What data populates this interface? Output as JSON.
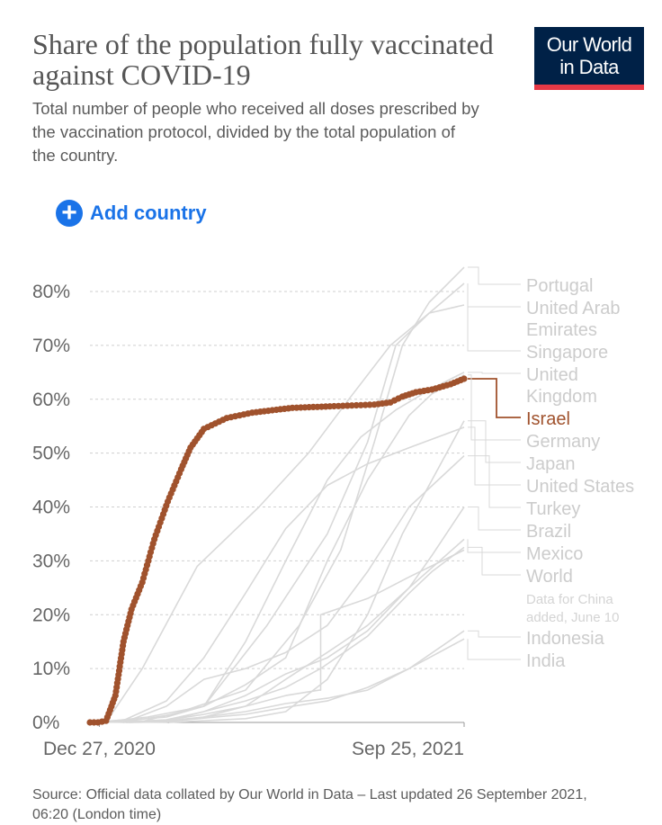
{
  "header": {
    "title": "Share of the population fully vaccinated against COVID-19",
    "subtitle": "Total number of people who received all doses prescribed by the vaccination protocol, divided by the total population of the country.",
    "logo_line1": "Our World",
    "logo_line2": "in Data"
  },
  "controls": {
    "add_country_label": "Add country"
  },
  "footer": {
    "source": "Source: Official data collated by Our World in Data – Last updated 26 September 2021, 06:20 (London time)"
  },
  "colors": {
    "highlight": "#a0522d",
    "muted_line": "#d9d9d9",
    "muted_label": "#cccccc",
    "grid": "#cfcfcf",
    "axis_text": "#666666",
    "accent": "#1a73e8",
    "logo_bg": "#002147",
    "logo_bar": "#e63946"
  },
  "chart_data": {
    "type": "line",
    "title": "Share of the population fully vaccinated against COVID-19",
    "ylim": [
      0,
      80
    ],
    "yticks": [
      0,
      10,
      20,
      30,
      40,
      50,
      60,
      70,
      80
    ],
    "ytick_labels": [
      "0%",
      "10%",
      "20%",
      "30%",
      "40%",
      "50%",
      "60%",
      "70%",
      "80%"
    ],
    "xlim": [
      "2020-12-20",
      "2021-09-25"
    ],
    "xtick_labels": [
      {
        "date": "2020-12-27",
        "label": "Dec 27, 2020"
      },
      {
        "date": "2021-09-25",
        "label": "Sep 25, 2021"
      }
    ],
    "grid": "horizontal dashed",
    "highlighted_series": "Israel",
    "series": [
      {
        "name": "Portugal",
        "label_lines": [
          "Portugal"
        ],
        "highlight": false,
        "points": [
          [
            "2021-01-12",
            0
          ],
          [
            "2021-02-20",
            1.5
          ],
          [
            "2021-04-15",
            6
          ],
          [
            "2021-05-25",
            18
          ],
          [
            "2021-06-25",
            32
          ],
          [
            "2021-07-20",
            52
          ],
          [
            "2021-08-10",
            70
          ],
          [
            "2021-08-30",
            78
          ],
          [
            "2021-09-25",
            84.5
          ]
        ]
      },
      {
        "name": "United Arab Emirates",
        "label_lines": [
          "United Arab",
          "Emirates"
        ],
        "highlight": false,
        "points": [
          [
            "2021-01-01",
            0
          ],
          [
            "2021-01-28",
            10
          ],
          [
            "2021-03-10",
            29
          ],
          [
            "2021-04-25",
            40
          ],
          [
            "2021-06-01",
            50
          ],
          [
            "2021-07-01",
            60
          ],
          [
            "2021-08-01",
            70
          ],
          [
            "2021-08-30",
            76
          ],
          [
            "2021-09-25",
            81.5
          ]
        ]
      },
      {
        "name": "Singapore",
        "label_lines": [
          "Singapore"
        ],
        "highlight": false,
        "points": [
          [
            "2021-01-25",
            0
          ],
          [
            "2021-03-15",
            3
          ],
          [
            "2021-05-01",
            18
          ],
          [
            "2021-06-15",
            35
          ],
          [
            "2021-07-15",
            52
          ],
          [
            "2021-08-05",
            70
          ],
          [
            "2021-08-30",
            76
          ],
          [
            "2021-09-25",
            77.5
          ]
        ]
      },
      {
        "name": "United Kingdom",
        "label_lines": [
          "United",
          "Kingdom"
        ],
        "highlight": false,
        "points": [
          [
            "2020-12-29",
            0
          ],
          [
            "2021-02-15",
            1
          ],
          [
            "2021-03-15",
            3
          ],
          [
            "2021-04-15",
            15
          ],
          [
            "2021-05-15",
            30
          ],
          [
            "2021-06-15",
            45
          ],
          [
            "2021-07-10",
            53
          ],
          [
            "2021-08-05",
            58
          ],
          [
            "2021-09-01",
            62
          ],
          [
            "2021-09-25",
            65
          ]
        ]
      },
      {
        "name": "Israel",
        "label_lines": [
          "Israel"
        ],
        "highlight": true,
        "points": [
          [
            "2020-12-20",
            0
          ],
          [
            "2020-12-26",
            0
          ],
          [
            "2021-01-01",
            0.3
          ],
          [
            "2021-01-08",
            5
          ],
          [
            "2021-01-14",
            15
          ],
          [
            "2021-01-20",
            21
          ],
          [
            "2021-01-28",
            26
          ],
          [
            "2021-02-06",
            34
          ],
          [
            "2021-02-16",
            41
          ],
          [
            "2021-02-26",
            47
          ],
          [
            "2021-03-05",
            51
          ],
          [
            "2021-03-15",
            54.5
          ],
          [
            "2021-04-01",
            56.5
          ],
          [
            "2021-04-20",
            57.5
          ],
          [
            "2021-05-20",
            58.4
          ],
          [
            "2021-06-20",
            58.7
          ],
          [
            "2021-07-20",
            59
          ],
          [
            "2021-08-01",
            59.4
          ],
          [
            "2021-08-10",
            60.5
          ],
          [
            "2021-08-20",
            61.3
          ],
          [
            "2021-09-01",
            61.8
          ],
          [
            "2021-09-15",
            62.8
          ],
          [
            "2021-09-25",
            63.8
          ]
        ]
      },
      {
        "name": "Germany",
        "label_lines": [
          "Germany"
        ],
        "highlight": false,
        "points": [
          [
            "2020-12-27",
            0
          ],
          [
            "2021-02-01",
            1
          ],
          [
            "2021-03-15",
            3
          ],
          [
            "2021-04-15",
            7
          ],
          [
            "2021-05-15",
            12
          ],
          [
            "2021-06-15",
            30
          ],
          [
            "2021-07-15",
            45
          ],
          [
            "2021-08-15",
            57
          ],
          [
            "2021-09-01",
            61
          ],
          [
            "2021-09-25",
            64.5
          ]
        ]
      },
      {
        "name": "Japan",
        "label_lines": [
          "Japan"
        ],
        "highlight": false,
        "points": [
          [
            "2021-02-17",
            0
          ],
          [
            "2021-04-15",
            0.7
          ],
          [
            "2021-05-15",
            2
          ],
          [
            "2021-06-15",
            8
          ],
          [
            "2021-07-15",
            20
          ],
          [
            "2021-08-10",
            35
          ],
          [
            "2021-09-01",
            45
          ],
          [
            "2021-09-25",
            56
          ]
        ]
      },
      {
        "name": "United States",
        "label_lines": [
          "United States"
        ],
        "highlight": false,
        "points": [
          [
            "2020-12-20",
            0
          ],
          [
            "2021-01-15",
            0.5
          ],
          [
            "2021-02-15",
            4
          ],
          [
            "2021-03-15",
            12
          ],
          [
            "2021-04-15",
            24
          ],
          [
            "2021-05-15",
            36
          ],
          [
            "2021-06-15",
            44
          ],
          [
            "2021-07-15",
            48
          ],
          [
            "2021-08-15",
            51
          ],
          [
            "2021-09-25",
            54.8
          ]
        ]
      },
      {
        "name": "Turkey",
        "label_lines": [
          "Turkey"
        ],
        "highlight": false,
        "points": [
          [
            "2021-01-14",
            0
          ],
          [
            "2021-02-15",
            3
          ],
          [
            "2021-03-15",
            8
          ],
          [
            "2021-04-15",
            10
          ],
          [
            "2021-05-15",
            13
          ],
          [
            "2021-06-15",
            18
          ],
          [
            "2021-07-15",
            28
          ],
          [
            "2021-08-15",
            40
          ],
          [
            "2021-09-25",
            49.5
          ]
        ]
      },
      {
        "name": "Brazil",
        "label_lines": [
          "Brazil"
        ],
        "highlight": false,
        "points": [
          [
            "2021-01-18",
            0
          ],
          [
            "2021-02-15",
            0.3
          ],
          [
            "2021-03-15",
            2
          ],
          [
            "2021-04-15",
            5
          ],
          [
            "2021-05-15",
            9
          ],
          [
            "2021-06-15",
            12
          ],
          [
            "2021-07-15",
            17
          ],
          [
            "2021-08-15",
            25
          ],
          [
            "2021-09-01",
            31
          ],
          [
            "2021-09-25",
            40
          ]
        ]
      },
      {
        "name": "Mexico",
        "label_lines": [
          "Mexico"
        ],
        "highlight": false,
        "points": [
          [
            "2020-12-24",
            0
          ],
          [
            "2021-02-15",
            0.3
          ],
          [
            "2021-03-15",
            1
          ],
          [
            "2021-04-15",
            3
          ],
          [
            "2021-05-15",
            8
          ],
          [
            "2021-06-15",
            13
          ],
          [
            "2021-07-15",
            18
          ],
          [
            "2021-08-15",
            25
          ],
          [
            "2021-09-25",
            34
          ]
        ]
      },
      {
        "name": "World",
        "label_lines": [
          "World"
        ],
        "highlight": false,
        "points": [
          [
            "2020-12-20",
            0
          ],
          [
            "2021-01-15",
            0.1
          ],
          [
            "2021-02-15",
            0.5
          ],
          [
            "2021-03-15",
            2
          ],
          [
            "2021-04-15",
            4
          ],
          [
            "2021-05-15",
            6.5
          ],
          [
            "2021-06-10",
            10
          ],
          [
            "2021-07-15",
            16
          ],
          [
            "2021-08-15",
            24
          ],
          [
            "2021-09-01",
            28
          ],
          [
            "2021-09-25",
            32.5
          ]
        ]
      },
      {
        "name": "World (incl. China)",
        "label_lines": [],
        "highlight": false,
        "points": [
          [
            "2020-12-20",
            0
          ],
          [
            "2021-01-15",
            0.1
          ],
          [
            "2021-02-15",
            0.4
          ],
          [
            "2021-03-15",
            1.5
          ],
          [
            "2021-04-15",
            3
          ],
          [
            "2021-05-15",
            5
          ],
          [
            "2021-06-09",
            6
          ],
          [
            "2021-06-10",
            6
          ],
          [
            "2021-06-10",
            20
          ],
          [
            "2021-07-15",
            23
          ],
          [
            "2021-08-15",
            27
          ],
          [
            "2021-09-25",
            32
          ]
        ]
      },
      {
        "name": "Indonesia",
        "label_lines": [
          "Indonesia"
        ],
        "highlight": false,
        "points": [
          [
            "2021-01-13",
            0
          ],
          [
            "2021-02-15",
            0.1
          ],
          [
            "2021-03-15",
            1
          ],
          [
            "2021-04-15",
            2
          ],
          [
            "2021-05-15",
            3.5
          ],
          [
            "2021-06-15",
            4.5
          ],
          [
            "2021-07-15",
            6
          ],
          [
            "2021-08-15",
            10
          ],
          [
            "2021-09-25",
            17
          ]
        ]
      },
      {
        "name": "India",
        "label_lines": [
          "India"
        ],
        "highlight": false,
        "points": [
          [
            "2021-01-16",
            0
          ],
          [
            "2021-02-15",
            0.1
          ],
          [
            "2021-03-15",
            0.8
          ],
          [
            "2021-04-15",
            1.5
          ],
          [
            "2021-05-15",
            2.8
          ],
          [
            "2021-06-15",
            4
          ],
          [
            "2021-07-15",
            6.5
          ],
          [
            "2021-08-15",
            10
          ],
          [
            "2021-09-25",
            15.5
          ]
        ]
      }
    ],
    "annotation": {
      "text_lines": [
        "Data for China",
        "added, June 10"
      ]
    }
  }
}
